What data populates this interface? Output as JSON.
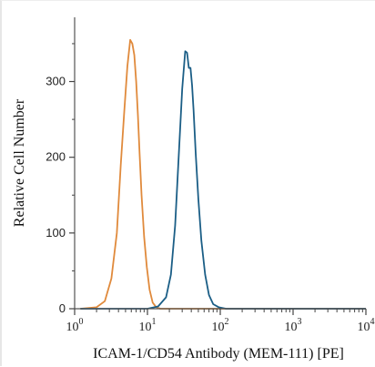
{
  "chart_data": {
    "type": "line",
    "xlabel": "ICAM-1/CD54 Antibody (MEM-111) [PE]",
    "ylabel": "Relative Cell Number",
    "xscale": "log",
    "xlim": [
      1,
      10000
    ],
    "ylim": [
      0,
      380
    ],
    "x_ticks": [
      1,
      10,
      100,
      1000,
      10000
    ],
    "x_tick_labels": [
      {
        "base": "10",
        "exp": "0"
      },
      {
        "base": "10",
        "exp": "1"
      },
      {
        "base": "10",
        "exp": "2"
      },
      {
        "base": "10",
        "exp": "3"
      },
      {
        "base": "10",
        "exp": "4"
      }
    ],
    "y_ticks": [
      0,
      100,
      200,
      300
    ],
    "y_tick_labels": [
      "0",
      "100",
      "200",
      "300"
    ],
    "series": [
      {
        "color": "#e08a3c",
        "x": [
          1.2,
          2.0,
          2.6,
          3.2,
          3.8,
          4.3,
          4.8,
          5.3,
          5.8,
          6.2,
          6.6,
          7.0,
          7.4,
          7.8,
          8.3,
          9.0,
          9.8,
          10.7,
          11.8,
          13.2,
          15.0,
          20,
          40,
          100,
          1000,
          10000
        ],
        "y": [
          0,
          2,
          10,
          40,
          100,
          190,
          260,
          320,
          355,
          350,
          335,
          300,
          255,
          205,
          150,
          95,
          55,
          25,
          8,
          2,
          0,
          0,
          0,
          0,
          0,
          0
        ]
      },
      {
        "color": "#1b5e86",
        "x": [
          1.2,
          10,
          14,
          18,
          21,
          24,
          27,
          30,
          33,
          35,
          37,
          39,
          41,
          43,
          46,
          50,
          55,
          62,
          70,
          80,
          95,
          120,
          160,
          300,
          1000,
          10000
        ],
        "y": [
          0,
          0,
          3,
          15,
          45,
          110,
          205,
          290,
          340,
          338,
          318,
          318,
          295,
          262,
          205,
          145,
          90,
          45,
          18,
          6,
          2,
          0,
          0,
          0,
          0,
          0
        ]
      }
    ]
  }
}
